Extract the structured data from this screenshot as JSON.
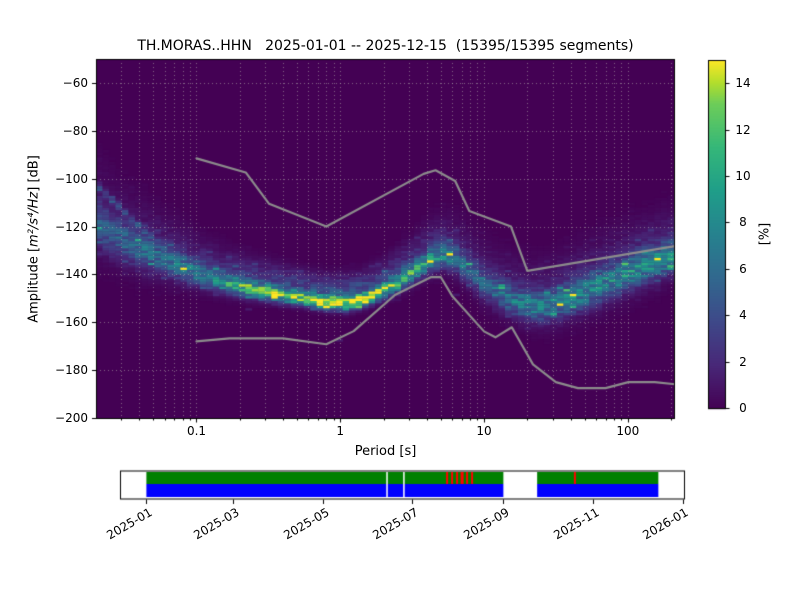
{
  "chart_data": {
    "type": "heatmap",
    "title": "TH.MORAS..HHN   2025-01-01 -- 2025-12-15  (15395/15395 segments)",
    "xlabel": "Period [s]",
    "ylabel_prefix": "Amplitude [",
    "ylabel_math": "m²/s⁴/Hz",
    "ylabel_suffix": "] [dB]",
    "xlim": [
      0.02,
      213
    ],
    "ylim": [
      -200,
      -50
    ],
    "xscale": "log",
    "xticks": {
      "values": [
        0.1,
        1,
        10,
        100
      ],
      "labels": [
        "0.1",
        "1",
        "10",
        "100"
      ]
    },
    "yticks": {
      "values": [
        -60,
        -80,
        -100,
        -120,
        -140,
        -160,
        -180,
        -200
      ],
      "labels": [
        "−60",
        "−80",
        "−100",
        "−120",
        "−140",
        "−160",
        "−180",
        "−200"
      ]
    },
    "grid": {
      "on": true,
      "style": "dotted",
      "y_major_db": [
        -60,
        -80,
        -100,
        -120,
        -140,
        -160,
        -180
      ]
    },
    "colorbar": {
      "label": "[%]",
      "min": 0,
      "max": 15,
      "tick_values": [
        0,
        2,
        4,
        6,
        8,
        10,
        12,
        14
      ],
      "tick_labels": [
        "0",
        "2",
        "4",
        "6",
        "8",
        "10",
        "12",
        "14"
      ],
      "colormap": "viridis"
    },
    "histogram": {
      "period_step_octaves": 0.15,
      "db_bin_width": 1,
      "ridge_mode_sigma_peak": [
        [
          0.02,
          -118.0,
          6.5,
          3.6
        ],
        [
          0.028,
          -124.5,
          5.5,
          4.2
        ],
        [
          0.04,
          -129.5,
          4.8,
          4.8
        ],
        [
          0.058,
          -133.5,
          4.2,
          5.2
        ],
        [
          0.085,
          -137.5,
          3.6,
          6.0
        ],
        [
          0.12,
          -141.0,
          3.0,
          7.0
        ],
        [
          0.17,
          -144.0,
          2.6,
          8.5
        ],
        [
          0.25,
          -146.3,
          2.3,
          10.5
        ],
        [
          0.37,
          -148.2,
          2.1,
          11.5
        ],
        [
          0.55,
          -150.0,
          1.9,
          12.5
        ],
        [
          0.8,
          -151.6,
          1.9,
          14.0
        ],
        [
          1.1,
          -152.0,
          1.9,
          15.0
        ],
        [
          1.45,
          -150.5,
          2.0,
          13.0
        ],
        [
          1.9,
          -147.5,
          2.1,
          11.0
        ],
        [
          2.5,
          -143.5,
          2.5,
          9.5
        ],
        [
          3.3,
          -138.5,
          2.8,
          8.5
        ],
        [
          4.3,
          -133.5,
          3.2,
          7.5
        ],
        [
          5.3,
          -131.5,
          3.4,
          6.5
        ],
        [
          6.5,
          -134.0,
          3.6,
          5.5
        ],
        [
          8.0,
          -138.5,
          3.8,
          5.0
        ],
        [
          10.0,
          -144.0,
          4.0,
          4.8
        ],
        [
          12.5,
          -147.5,
          4.0,
          5.0
        ],
        [
          16.0,
          -151.0,
          4.0,
          5.5
        ],
        [
          20.0,
          -153.0,
          4.0,
          6.0
        ],
        [
          26.0,
          -153.5,
          4.2,
          6.0
        ],
        [
          34.0,
          -151.5,
          4.4,
          6.0
        ],
        [
          45.0,
          -148.5,
          4.5,
          6.2
        ],
        [
          60.0,
          -145.5,
          4.5,
          6.5
        ],
        [
          80.0,
          -142.0,
          4.5,
          6.5
        ],
        [
          105.0,
          -139.0,
          4.5,
          6.8
        ],
        [
          140.0,
          -136.0,
          4.4,
          6.8
        ],
        [
          175.0,
          -134.0,
          4.3,
          7.0
        ],
        [
          213.0,
          -131.5,
          4.2,
          7.2
        ]
      ],
      "upper_haze": {
        "amp": 0.26,
        "offset_db": 5.5,
        "sigma_mult": 2.1
      },
      "secondary_strand": {
        "sigma": 1.5,
        "points": [
          [
            0.02,
            -102.5,
            3.8
          ],
          [
            0.026,
            -109.0,
            4.4
          ],
          [
            0.034,
            -116.0,
            4.6
          ],
          [
            0.046,
            -123.0,
            4.2
          ],
          [
            0.062,
            -129.5,
            4.0
          ],
          [
            0.085,
            -135.0,
            3.8
          ],
          [
            0.115,
            -139.0,
            4.0
          ],
          [
            0.15,
            -141.8,
            4.5
          ],
          [
            0.22,
            -142.8,
            4.5
          ],
          [
            0.3,
            -144.5,
            3.5
          ],
          [
            0.35,
            -146.0,
            2.5
          ]
        ]
      }
    },
    "noise_models": {
      "color": "#8c8c8c",
      "nhnm": [
        [
          0.1,
          -91.5
        ],
        [
          0.22,
          -97.4
        ],
        [
          0.32,
          -110.5
        ],
        [
          0.8,
          -120.0
        ],
        [
          3.8,
          -98.0
        ],
        [
          4.6,
          -96.5
        ],
        [
          6.3,
          -101.0
        ],
        [
          7.9,
          -113.5
        ],
        [
          15.4,
          -120.0
        ],
        [
          20.0,
          -138.5
        ],
        [
          213.0,
          -128.2
        ]
      ],
      "nlnm": [
        [
          0.1,
          -168.0
        ],
        [
          0.17,
          -166.7
        ],
        [
          0.4,
          -166.7
        ],
        [
          0.8,
          -169.2
        ],
        [
          1.24,
          -163.7
        ],
        [
          2.4,
          -148.6
        ],
        [
          4.3,
          -141.1
        ],
        [
          5.0,
          -141.1
        ],
        [
          6.0,
          -149.0
        ],
        [
          10.0,
          -163.8
        ],
        [
          12.0,
          -166.3
        ],
        [
          15.6,
          -162.1
        ],
        [
          21.9,
          -177.6
        ],
        [
          31.6,
          -185.0
        ],
        [
          45.0,
          -187.5
        ],
        [
          70.0,
          -187.5
        ],
        [
          101.0,
          -185.0
        ],
        [
          154.0,
          -185.0
        ],
        [
          213.0,
          -185.9
        ]
      ]
    },
    "coverage": {
      "tick_labels": [
        "2025-01",
        "2025-03",
        "2025-05",
        "2025-07",
        "2025-09",
        "2025-11",
        "2026-01"
      ],
      "tick_days": [
        0,
        59,
        120,
        181,
        243,
        304,
        365
      ],
      "segments_days": [
        [
          0,
          243
        ],
        [
          266,
          348.5
        ]
      ],
      "thin_gap_days": [
        163.8,
        175.3
      ],
      "red_mark_days": [
        204.7,
        208.1,
        211.5,
        214.9,
        218.3,
        221.7,
        291.7
      ],
      "colors": {
        "processed": "#008000",
        "data": "#0000ff",
        "gap": "#ff0000"
      }
    },
    "colors": {
      "figure_bg": "#ffffff",
      "plot_bg": "#440154",
      "grid": "rgba(185,185,178,0.55)",
      "spine": "#000000",
      "viridis_stops": [
        [
          0.0,
          "#440154"
        ],
        [
          0.125,
          "#482878"
        ],
        [
          0.25,
          "#3e4989"
        ],
        [
          0.375,
          "#31688e"
        ],
        [
          0.5,
          "#26828e"
        ],
        [
          0.625,
          "#1f9e89"
        ],
        [
          0.75,
          "#35b779"
        ],
        [
          0.875,
          "#6dcd59"
        ],
        [
          0.9375,
          "#b4de2c"
        ],
        [
          1.0,
          "#fde725"
        ]
      ]
    }
  }
}
